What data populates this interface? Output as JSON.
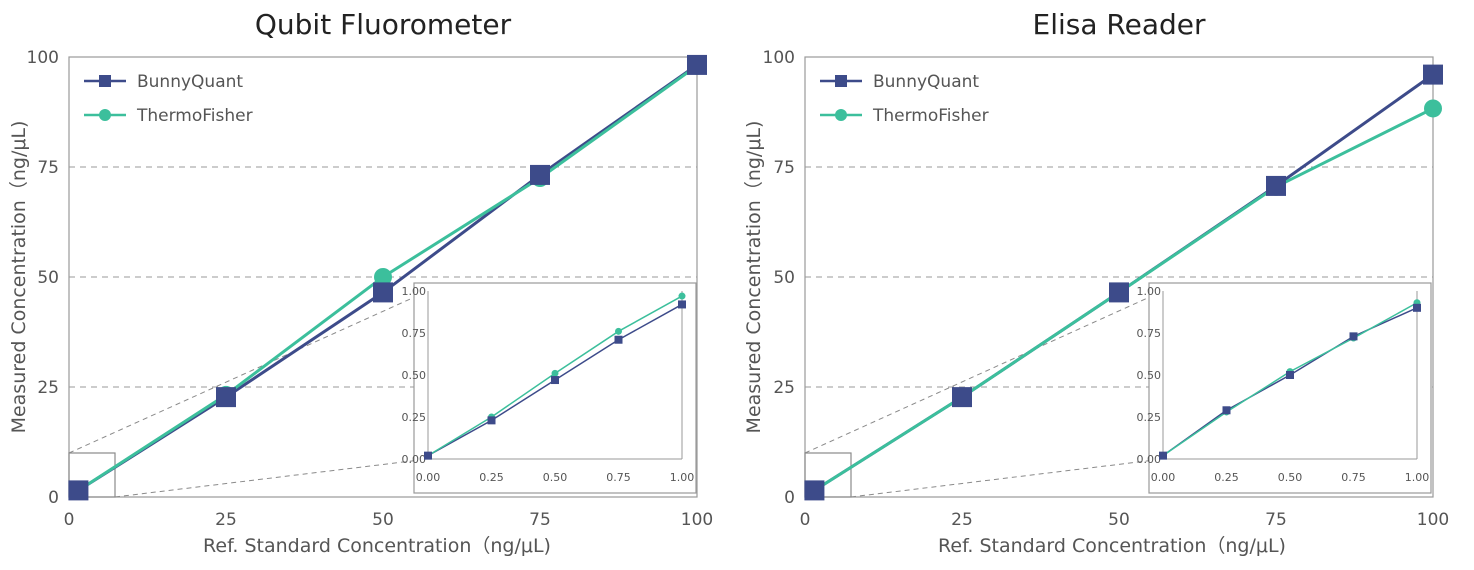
{
  "colors": {
    "bunny": "#3d4b8a",
    "thermo": "#3cbf9c",
    "frame": "#9a9a9a",
    "text": "#555555"
  },
  "chart_data": [
    {
      "type": "line",
      "title": "Qubit Fluorometer",
      "xlabel": "Ref. Standard Concentration（ng/μL)",
      "ylabel": "Measured Concentration（ng/μL)",
      "xlim": [
        0,
        100
      ],
      "ylim": [
        0,
        100
      ],
      "xticks": [
        "0",
        "25",
        "50",
        "75",
        "100"
      ],
      "yticks": [
        "0",
        "25",
        "50",
        "75",
        "100"
      ],
      "grid": "horizontal dashed",
      "legend_position": "top-left",
      "x": [
        1.5,
        25,
        50,
        75,
        100
      ],
      "series": [
        {
          "name": "BunnyQuant",
          "marker": "square",
          "values": [
            1.5,
            22.7,
            46.5,
            73.2,
            98.2
          ]
        },
        {
          "name": "ThermoFisher",
          "marker": "circle",
          "values": [
            1.5,
            23.2,
            50.0,
            72.5,
            98.0
          ]
        }
      ],
      "inset": {
        "xlim": [
          0,
          1
        ],
        "ylim": [
          0,
          1
        ],
        "xticks": [
          "0.00",
          "0.25",
          "0.50",
          "0.75",
          "1.00"
        ],
        "yticks": [
          "0.00",
          "0.25",
          "0.50",
          "0.75",
          "1.00"
        ],
        "x": [
          0,
          0.25,
          0.5,
          0.75,
          1.0
        ],
        "series": [
          {
            "name": "BunnyQuant",
            "marker": "square",
            "values": [
              0.02,
              0.23,
              0.47,
              0.71,
              0.92
            ]
          },
          {
            "name": "ThermoFisher",
            "marker": "circle",
            "values": [
              0.02,
              0.25,
              0.51,
              0.76,
              0.97
            ]
          }
        ]
      }
    },
    {
      "type": "line",
      "title": "Elisa Reader",
      "xlabel": "Ref. Standard Concentration（ng/μL)",
      "ylabel": "Measured Concentration（ng/μL)",
      "xlim": [
        0,
        100
      ],
      "ylim": [
        0,
        100
      ],
      "xticks": [
        "0",
        "25",
        "50",
        "75",
        "100"
      ],
      "yticks": [
        "0",
        "25",
        "50",
        "75",
        "100"
      ],
      "grid": "horizontal dashed",
      "legend_position": "top-left",
      "x": [
        1.5,
        25,
        50,
        75,
        100
      ],
      "series": [
        {
          "name": "BunnyQuant",
          "marker": "square",
          "values": [
            1.5,
            22.7,
            46.5,
            70.7,
            96.0
          ]
        },
        {
          "name": "ThermoFisher",
          "marker": "circle",
          "values": [
            1.5,
            22.7,
            46.5,
            70.5,
            88.3
          ]
        }
      ],
      "inset": {
        "xlim": [
          0,
          1
        ],
        "ylim": [
          0,
          1
        ],
        "xticks": [
          "0.00",
          "0.25",
          "0.50",
          "0.75",
          "1.00"
        ],
        "yticks": [
          "0.00",
          "0.25",
          "0.50",
          "0.75",
          "1.00"
        ],
        "x": [
          0,
          0.25,
          0.5,
          0.75,
          1.0
        ],
        "series": [
          {
            "name": "BunnyQuant",
            "marker": "square",
            "values": [
              0.02,
              0.29,
              0.5,
              0.73,
              0.9
            ]
          },
          {
            "name": "ThermoFisher",
            "marker": "circle",
            "values": [
              0.02,
              0.28,
              0.52,
              0.72,
              0.93
            ]
          }
        ]
      }
    }
  ]
}
